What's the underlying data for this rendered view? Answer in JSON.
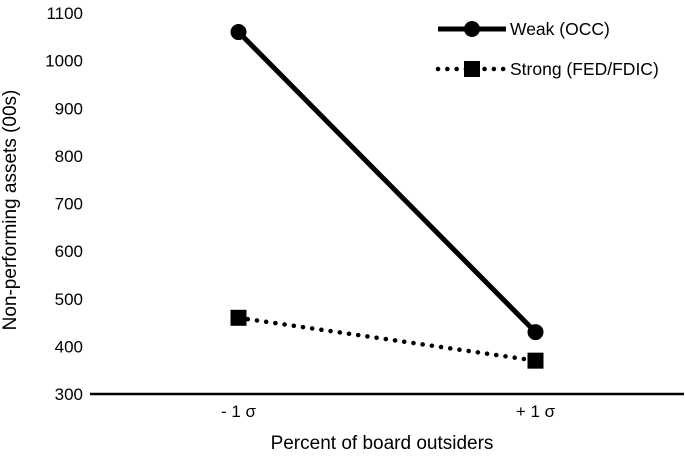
{
  "chart_data": {
    "type": "line",
    "title": "",
    "categories": [
      "- 1 σ",
      "+ 1 σ"
    ],
    "series": [
      {
        "name": "Weak (OCC)",
        "values": [
          1060,
          430
        ],
        "marker": "circle",
        "line": "solid"
      },
      {
        "name": "Strong (FED/FDIC)",
        "values": [
          460,
          370
        ],
        "marker": "square",
        "line": "dotted"
      }
    ],
    "xlabel": "Percent of board outsiders",
    "ylabel": "Non-performing assets (00s)",
    "ylim": [
      300,
      1100
    ],
    "yticks": [
      "300",
      "400",
      "500",
      "600",
      "700",
      "800",
      "900",
      "1000",
      "1100"
    ],
    "grid": false,
    "legend_position": "top-right",
    "series_color": "#000000",
    "background": "#ffffff"
  }
}
